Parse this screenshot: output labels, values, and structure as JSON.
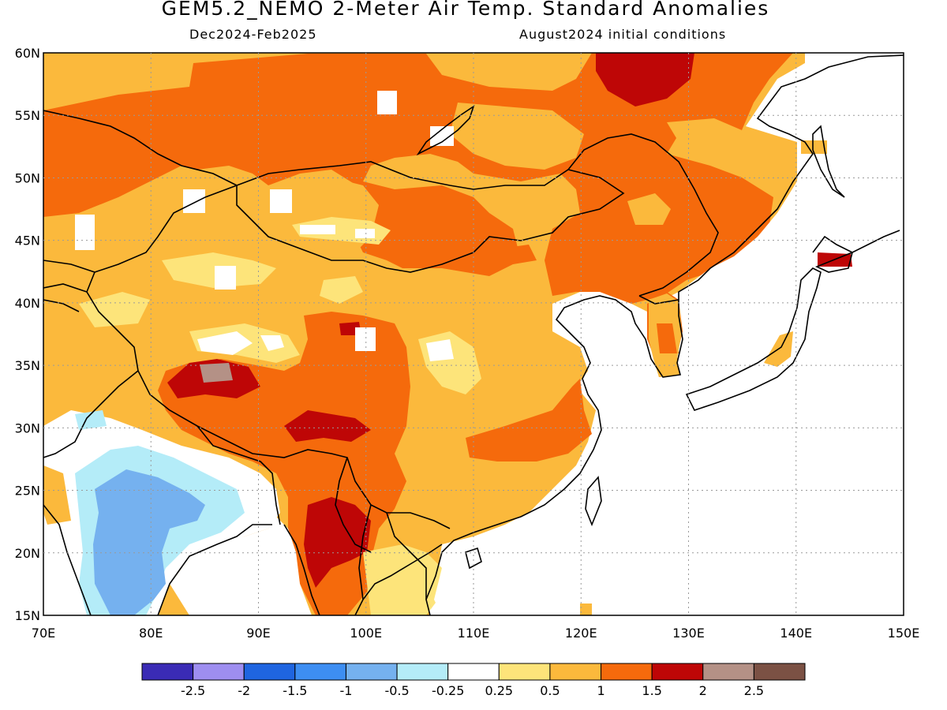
{
  "title": "GEM5.2_NEMO 2-Meter Air Temp. Standard Anomalies",
  "period": "Dec2024-Feb2025",
  "init": "August2024 initial conditions",
  "lat_labels": [
    "60N",
    "55N",
    "50N",
    "45N",
    "40N",
    "35N",
    "30N",
    "25N",
    "20N",
    "15N"
  ],
  "lon_labels": [
    "70E",
    "80E",
    "90E",
    "100E",
    "110E",
    "120E",
    "130E",
    "140E",
    "150E"
  ],
  "colorbar": {
    "colors": [
      "#3a2bb5",
      "#9e8ef0",
      "#1f65e0",
      "#3d8ef2",
      "#75b1ef",
      "#b4ecf8",
      "#ffffff",
      "#fde47a",
      "#fbb93c",
      "#f56a0c",
      "#be0606",
      "#b49186",
      "#7b5144"
    ],
    "labels": [
      "-2.5",
      "-2",
      "-1.5",
      "-1",
      "-0.5",
      "-0.25",
      "0.25",
      "0.5",
      "1",
      "1.5",
      "2",
      "2.5"
    ]
  },
  "colors": {
    "water": "#ffffff",
    "anom_05_1": "#fbb93c",
    "anom_1_15": "#f56a0c",
    "anom_15_2": "#be0606",
    "anom_2_25": "#b49186",
    "anom_025_05": "#fde47a",
    "neg_025_05": "#b4ecf8",
    "neg_05_1": "#75b1ef"
  }
}
